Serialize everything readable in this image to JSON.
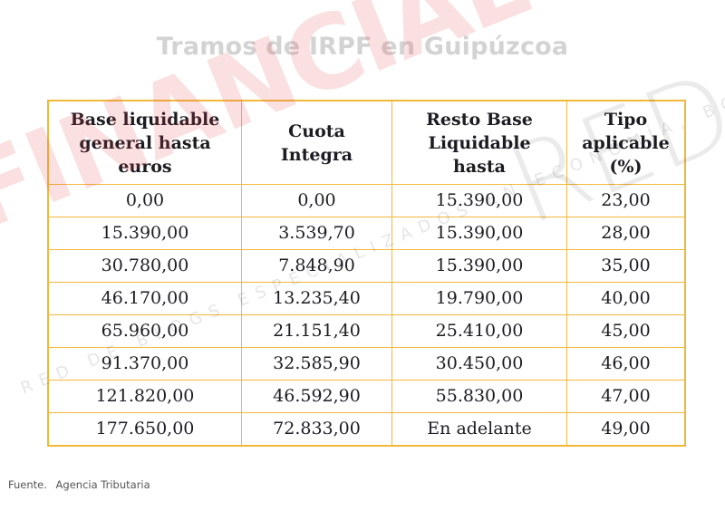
{
  "title": "Tramos de IRPF en Guipúzcoa",
  "table": {
    "headers": [
      "Base liquidable general hasta euros",
      "Cuota Integra",
      "Resto Base Liquidable hasta",
      "Tipo aplicable (%)"
    ],
    "header_lines": [
      [
        "Base liquidable",
        "general hasta",
        "euros"
      ],
      [
        "Cuota",
        "Integra"
      ],
      [
        "Resto Base",
        "Liquidable",
        "hasta"
      ],
      [
        "Tipo",
        "aplicable",
        "(%)"
      ]
    ],
    "rows": [
      [
        "0,00",
        "0,00",
        "15.390,00",
        "23,00"
      ],
      [
        "15.390,00",
        "3.539,70",
        "15.390,00",
        "28,00"
      ],
      [
        "30.780,00",
        "7.848,90",
        "15.390,00",
        "35,00"
      ],
      [
        "46.170,00",
        "13.235,40",
        "19.790,00",
        "40,00"
      ],
      [
        "65.960,00",
        "21.151,40",
        "25.410,00",
        "45,00"
      ],
      [
        "91.370,00",
        "32.585,90",
        "30.450,00",
        "46,00"
      ],
      [
        "121.820,00",
        "46.592,90",
        "55.830,00",
        "47,00"
      ],
      [
        "177.650,00",
        "72.833,00",
        "En adelante",
        "49,00"
      ]
    ],
    "border_color": "#f2b83a"
  },
  "source": {
    "label": "Fuente.",
    "value": "Agencia Tributaria"
  },
  "watermark": {
    "brand": "FINANCIAL",
    "brand_suffix": "RED",
    "tagline": "RED DE BLOGS ESPECIALIZADOS EN ECONOMÍA, BOLSA Y FINANZAS"
  },
  "colors": {
    "title": "#d3d3d3",
    "text": "#1c1c22",
    "watermark_red": "#e24650"
  }
}
